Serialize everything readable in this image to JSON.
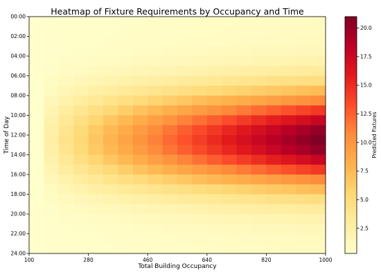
{
  "chart_data": {
    "type": "heatmap",
    "title": "Heatmap of Fixture Requirements by Occupancy and Time",
    "xlabel": "Total Building Occupancy",
    "ylabel": "Time of Day",
    "colorbar_label": "Predicted Fixtures",
    "colormap": "YlOrRd",
    "x_range": [
      100,
      1000
    ],
    "y_range_hours": [
      0,
      24
    ],
    "color_range": [
      0.3,
      21
    ],
    "x_ticks": [
      "100",
      "280",
      "460",
      "640",
      "820",
      "1000"
    ],
    "y_ticks": [
      "00:00",
      "02:00",
      "04:00",
      "06:00",
      "08:00",
      "10:00",
      "12:00",
      "14:00",
      "16:00",
      "18:00",
      "20:00",
      "22:00",
      "24:00"
    ],
    "colorbar_ticks": [
      "2.5",
      "5.0",
      "7.5",
      "10.0",
      "12.5",
      "15.0",
      "17.5",
      "20.0"
    ],
    "colorbar_tick_values": [
      2.5,
      5,
      7.5,
      10,
      12.5,
      15,
      17.5,
      20
    ],
    "occupancy_bins": [
      100,
      145,
      190,
      235,
      280,
      325,
      370,
      415,
      460,
      505,
      550,
      595,
      640,
      685,
      730,
      775,
      820,
      865,
      910,
      955
    ],
    "hour_bins": [
      0.0,
      1.0,
      2.0,
      3.0,
      4.0,
      5.0,
      6.0,
      7.0,
      8.0,
      9.0,
      10.0,
      11.0,
      12.0,
      13.0,
      14.0,
      15.0,
      16.0,
      17.0,
      18.0,
      19.0,
      20.0,
      21.0,
      22.0,
      23.0
    ],
    "peak_hour": 12,
    "max_fixtures": 21
  }
}
